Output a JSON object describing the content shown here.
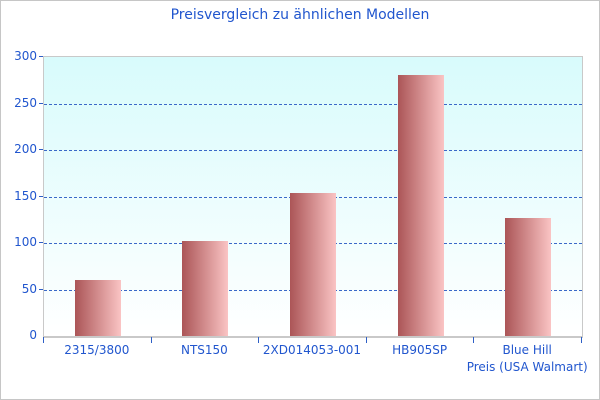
{
  "chart_data": {
    "type": "bar",
    "title": "Preisvergleich zu ähnlichen Modellen",
    "categories": [
      "2315/3800",
      "NTS150",
      "2XD014053-001",
      "HB905SP",
      "Blue Hill\nPreis (USA Walmart)"
    ],
    "values": [
      60,
      102,
      154,
      281,
      127
    ],
    "series_name": "Preis (USA Walmart)",
    "xlabel": "",
    "ylabel": "",
    "ylim": [
      0,
      300
    ],
    "yticks": [
      0,
      50,
      100,
      150,
      200,
      250,
      300
    ],
    "grid": "horizontal-dashed",
    "legend": "none",
    "colors": {
      "title_text": "#2156ce",
      "axis_label_text": "#2156ce",
      "gridline": "#3a68c8",
      "tick": "#2e5fc6",
      "axis_border": "#c9c9c9",
      "plot_bg_top": "#d8fbfc",
      "plot_bg_bottom": "#ffffff",
      "bar_gradient_left": "#ab5557",
      "bar_gradient_right": "#fac4c4",
      "page_border": "#c6c6c6",
      "page_bg": "#ffffff"
    }
  }
}
